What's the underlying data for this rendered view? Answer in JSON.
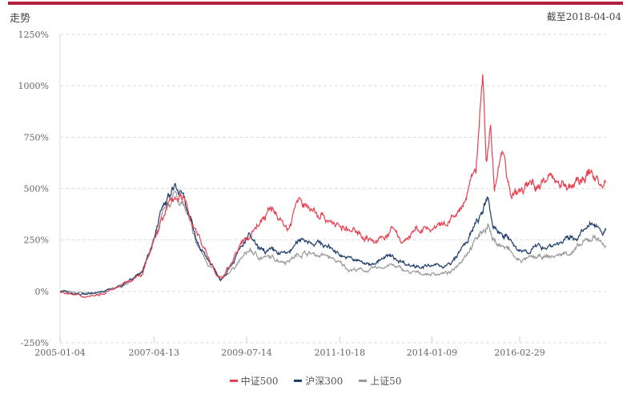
{
  "header": {
    "title": "走势",
    "as_of": "截至2018-04-04"
  },
  "chart_data": {
    "type": "line",
    "title": "走势",
    "xlabel": "",
    "ylabel": "",
    "ylim": [
      -250,
      1250
    ],
    "y_ticks": [
      1250,
      1000,
      750,
      500,
      250,
      0,
      -250
    ],
    "y_tick_labels": [
      "1250%",
      "1000%",
      "750%",
      "500%",
      "250%",
      "0%",
      "-250%"
    ],
    "x_range": [
      2005.0,
      2018.26
    ],
    "x_ticks": [
      2005.0,
      2007.28,
      2009.53,
      2011.79,
      2014.03,
      2016.16
    ],
    "x_tick_labels": [
      "2005-01-04",
      "2007-04-13",
      "2009-07-14",
      "2011-10-18",
      "2014-01-09",
      "2016-02-29"
    ],
    "grid": true,
    "legend_position": "bottom-center",
    "series": [
      {
        "name": "中证500",
        "color": "#e8404f",
        "points": [
          [
            2005,
            0
          ],
          [
            2005.5,
            -25
          ],
          [
            2006,
            -15
          ],
          [
            2006.5,
            40
          ],
          [
            2007,
            80
          ],
          [
            2007.4,
            320
          ],
          [
            2007.6,
            400
          ],
          [
            2007.8,
            470
          ],
          [
            2008,
            440
          ],
          [
            2008.3,
            300
          ],
          [
            2008.8,
            80
          ],
          [
            2008.95,
            60
          ],
          [
            2009.3,
            200
          ],
          [
            2009.6,
            270
          ],
          [
            2009.77,
            320
          ],
          [
            2010.15,
            400
          ],
          [
            2010.55,
            300
          ],
          [
            2010.75,
            440
          ],
          [
            2011.3,
            380
          ],
          [
            2011.9,
            300
          ],
          [
            2012.3,
            280
          ],
          [
            2012.7,
            240
          ],
          [
            2013.1,
            300
          ],
          [
            2013.3,
            240
          ],
          [
            2013.7,
            300
          ],
          [
            2014.05,
            300
          ],
          [
            2014.4,
            320
          ],
          [
            2014.8,
            420
          ],
          [
            2015.1,
            600
          ],
          [
            2015.27,
            1070
          ],
          [
            2015.35,
            600
          ],
          [
            2015.45,
            780
          ],
          [
            2015.55,
            500
          ],
          [
            2015.75,
            700
          ],
          [
            2015.95,
            450
          ],
          [
            2016.4,
            520
          ],
          [
            2017,
            560
          ],
          [
            2017.4,
            500
          ],
          [
            2017.9,
            580
          ],
          [
            2018.26,
            500
          ]
        ]
      },
      {
        "name": "沪深300",
        "color": "#1e3d6b",
        "points": [
          [
            2005,
            0
          ],
          [
            2005.5,
            -15
          ],
          [
            2006,
            -5
          ],
          [
            2006.5,
            30
          ],
          [
            2007,
            100
          ],
          [
            2007.5,
            400
          ],
          [
            2007.8,
            510
          ],
          [
            2008,
            440
          ],
          [
            2008.3,
            250
          ],
          [
            2008.9,
            60
          ],
          [
            2009.6,
            270
          ],
          [
            2009.8,
            200
          ],
          [
            2010.5,
            180
          ],
          [
            2010.9,
            260
          ],
          [
            2011.5,
            220
          ],
          [
            2012,
            160
          ],
          [
            2012.5,
            130
          ],
          [
            2013,
            170
          ],
          [
            2013.5,
            130
          ],
          [
            2014,
            120
          ],
          [
            2014.5,
            130
          ],
          [
            2014.9,
            250
          ],
          [
            2015.4,
            440
          ],
          [
            2015.5,
            320
          ],
          [
            2015.9,
            260
          ],
          [
            2016.1,
            190
          ],
          [
            2016.5,
            210
          ],
          [
            2017,
            230
          ],
          [
            2017.5,
            260
          ],
          [
            2018,
            330
          ],
          [
            2018.26,
            290
          ]
        ]
      },
      {
        "name": "上证50",
        "color": "#999999",
        "points": [
          [
            2005,
            0
          ],
          [
            2005.5,
            -10
          ],
          [
            2006,
            -5
          ],
          [
            2006.5,
            25
          ],
          [
            2007,
            90
          ],
          [
            2007.5,
            360
          ],
          [
            2007.8,
            480
          ],
          [
            2008,
            420
          ],
          [
            2008.3,
            230
          ],
          [
            2008.9,
            50
          ],
          [
            2009.6,
            200
          ],
          [
            2009.8,
            170
          ],
          [
            2010.5,
            150
          ],
          [
            2010.9,
            190
          ],
          [
            2011.5,
            170
          ],
          [
            2012,
            110
          ],
          [
            2012.5,
            100
          ],
          [
            2013,
            130
          ],
          [
            2013.5,
            90
          ],
          [
            2014,
            85
          ],
          [
            2014.5,
            90
          ],
          [
            2014.9,
            200
          ],
          [
            2015.4,
            330
          ],
          [
            2015.5,
            250
          ],
          [
            2015.9,
            200
          ],
          [
            2016.1,
            150
          ],
          [
            2016.5,
            160
          ],
          [
            2017,
            170
          ],
          [
            2017.5,
            200
          ],
          [
            2018,
            270
          ],
          [
            2018.26,
            220
          ]
        ]
      }
    ]
  }
}
